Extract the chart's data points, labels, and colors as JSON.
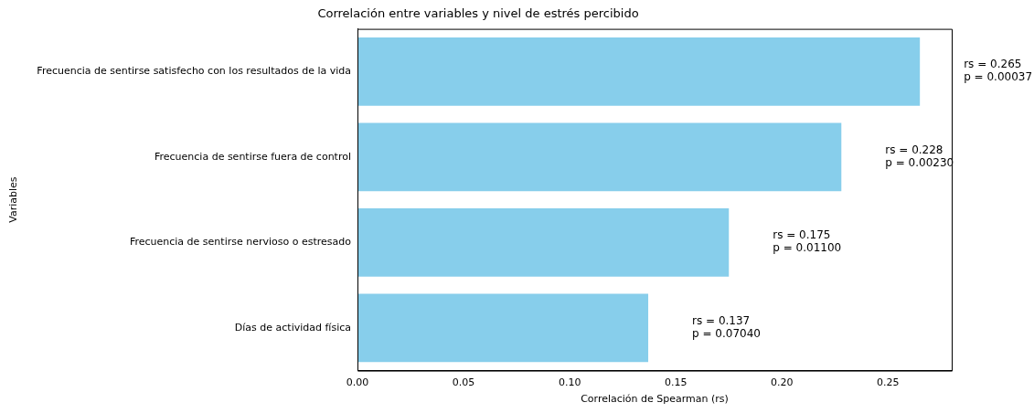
{
  "chart_data": {
    "type": "bar",
    "orientation": "horizontal",
    "title": "Correlación entre variables y nivel de estrés percibido",
    "xlabel": "Correlación de Spearman (rs)",
    "ylabel": "Variables",
    "categories": [
      "Frecuencia de sentirse satisfecho con los resultados de la vida",
      "Frecuencia de sentirse fuera de control",
      "Frecuencia de sentirse nervioso o estresado",
      "Días de actividad física"
    ],
    "values": [
      0.265,
      0.228,
      0.175,
      0.137
    ],
    "color": "#87ceeb",
    "xlim": [
      0,
      0.28
    ],
    "xticks": [
      {
        "value": 0,
        "label": "0.00"
      },
      {
        "value": 0.05,
        "label": "0.05"
      },
      {
        "value": 0.1,
        "label": "0.10"
      },
      {
        "value": 0.15,
        "label": "0.15"
      },
      {
        "value": 0.2,
        "label": "0.20"
      },
      {
        "value": 0.25,
        "label": "0.25"
      }
    ],
    "annotations": [
      "rs = 0.265\np = 0.00037",
      "rs = 0.228\np = 0.00230",
      "rs = 0.175\np = 0.01100",
      "rs = 0.137\np = 0.07040"
    ],
    "grid": false,
    "legend": false
  }
}
